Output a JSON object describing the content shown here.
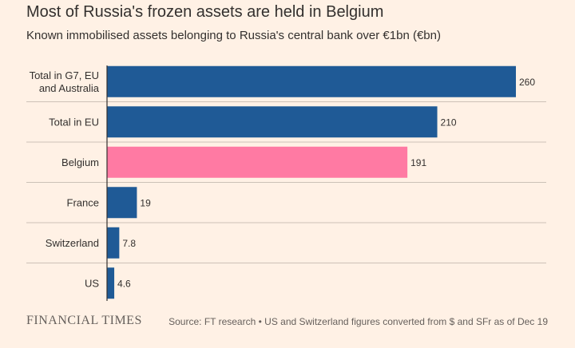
{
  "chart_data": {
    "type": "bar",
    "orientation": "horizontal",
    "title": "Most of Russia's frozen assets are held in Belgium",
    "subtitle": "Known immobilised assets belonging to Russia's central bank over €1bn (€bn)",
    "categories": [
      [
        "Total in G7, EU",
        "and Australia"
      ],
      [
        "Total in EU"
      ],
      [
        "Belgium"
      ],
      [
        "France"
      ],
      [
        "Switzerland"
      ],
      [
        "US"
      ]
    ],
    "values": [
      260,
      210,
      191,
      19,
      7.8,
      4.6
    ],
    "value_labels": [
      "260",
      "210",
      "191",
      "19",
      "7.8",
      "4.6"
    ],
    "highlight_category": "Belgium",
    "xlim": [
      0,
      260
    ],
    "grid": false,
    "colors": {
      "default_bar": "#1f5a96",
      "highlight_bar": "#ff7aa3",
      "separator": "#ccc1b7",
      "axis": "#33302e"
    }
  },
  "footer": {
    "logo": "FINANCIAL TIMES",
    "source": "Source: FT research • US and Switzerland figures converted from $ and SFr as of Dec 19"
  }
}
